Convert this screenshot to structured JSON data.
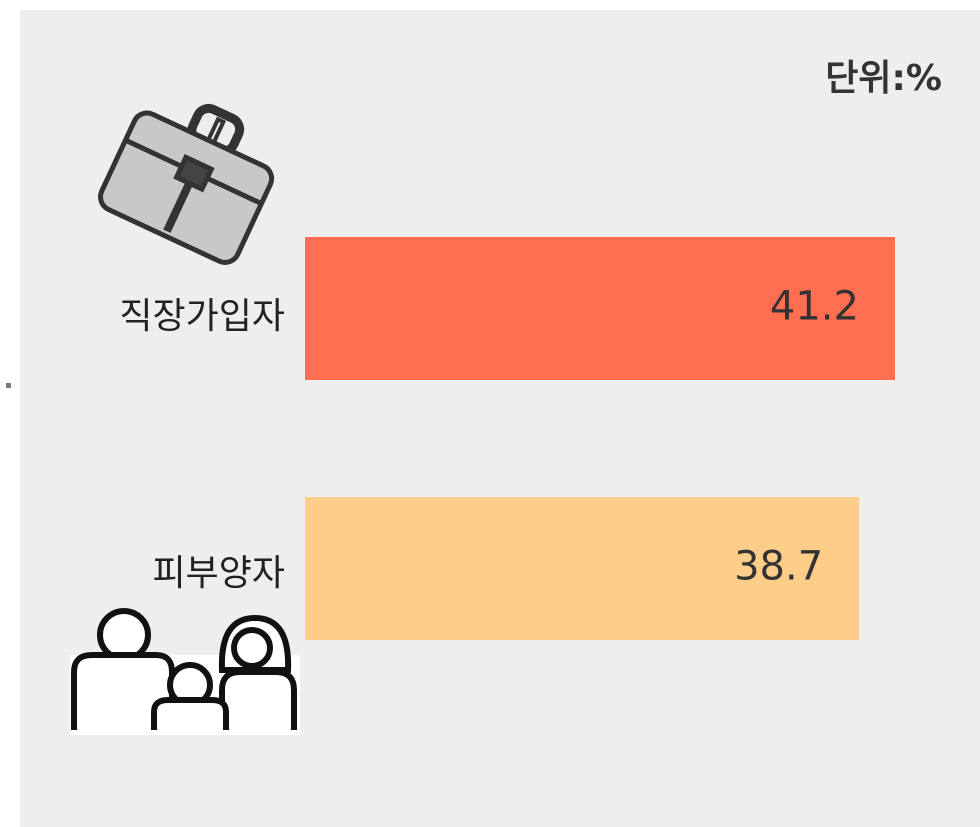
{
  "chart_data": {
    "type": "bar",
    "orientation": "horizontal",
    "unit_label": "단위:%",
    "categories": [
      "직장가입자",
      "피부양자"
    ],
    "values": [
      41.2,
      38.7
    ],
    "colors": [
      "#ff6e50",
      "#ffcd8a"
    ]
  }
}
